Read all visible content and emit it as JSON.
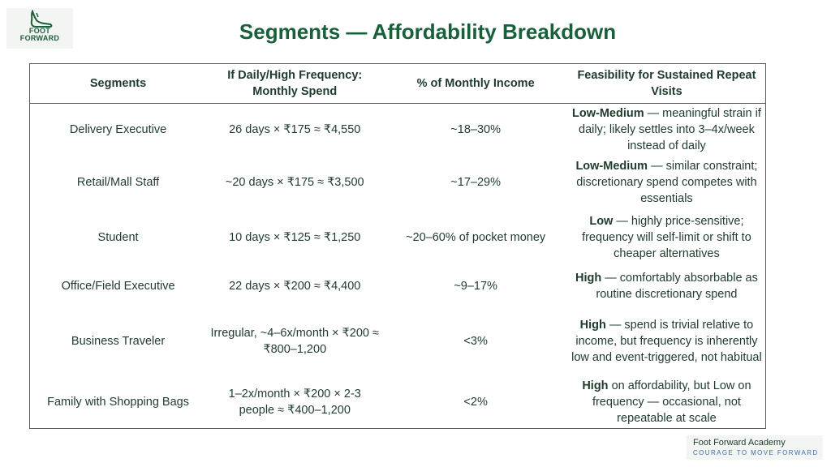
{
  "logo": {
    "line1": "FOOT",
    "line2": "FORWARD",
    "icon": "foot-icon"
  },
  "title": "Segments — Affordability Breakdown",
  "table": {
    "headers": [
      "Segments",
      "If Daily/High Frequency: Monthly Spend",
      "% of Monthly Income",
      "Feasibility for Sustained Repeat Visits"
    ],
    "rows": [
      {
        "segment": "Delivery Executive",
        "spend": "26 days × ₹175 ≈ ₹4,550",
        "income": "~18–30%",
        "level": "Low-Medium",
        "feasibility": " — meaningful strain if daily; likely settles into 3–4x/week instead of daily"
      },
      {
        "segment": "Retail/Mall Staff",
        "spend": "~20 days × ₹175 ≈ ₹3,500",
        "income": "~17–29%",
        "level": "Low-Medium",
        "feasibility": " — similar constraint; discretionary spend competes with essentials"
      },
      {
        "segment": "Student",
        "spend": "10 days × ₹125 ≈ ₹1,250",
        "income": "~20–60% of pocket money",
        "level": "Low",
        "feasibility": " — highly price-sensitive; frequency will self-limit or shift to cheaper alternatives"
      },
      {
        "segment": "Office/Field Executive",
        "spend": "22 days × ₹200 ≈ ₹4,400",
        "income": "~9–17%",
        "level": "High",
        "feasibility": " — comfortably absorbable as routine discretionary spend"
      },
      {
        "segment": "Business Traveler",
        "spend": "Irregular, ~4–6x/month × ₹200 ≈ ₹800–1,200",
        "income": "<3%",
        "level": "High",
        "feasibility": " — spend is trivial relative to income, but frequency is inherently low and event-triggered, not habitual"
      },
      {
        "segment": "Family with Shopping Bags",
        "spend": "1–2x/month × ₹200 × 2-3 people ≈ ₹400–1,200",
        "income": "<2%",
        "level": "High",
        "feasibility": " on affordability, but Low on frequency — occasional, not repeatable at scale"
      }
    ]
  },
  "footer": {
    "name": "Foot Forward Academy",
    "tagline": "COURAGE TO MOVE FORWARD"
  },
  "colors": {
    "title": "#17603a",
    "text": "#1f3b2c",
    "tagline": "#3a6fb0"
  }
}
